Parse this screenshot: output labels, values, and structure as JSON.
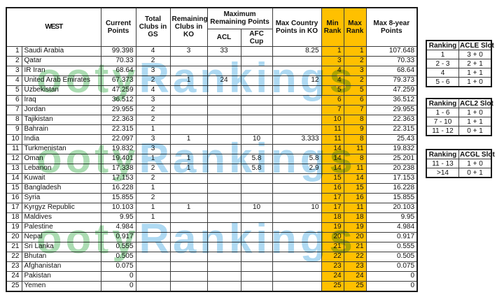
{
  "title": "WEST",
  "colors": {
    "rank_column_highlight": "#FFC000",
    "watermark_green": "#abdcb2",
    "watermark_blue": "#aed9f2"
  },
  "watermark": {
    "part_green": "ooty",
    "part_blue": "Rankings"
  },
  "main_table": {
    "headers": {
      "current_points": "Current Points",
      "total_clubs_gs": "Total Clubs in GS",
      "remaining_clubs_ko": "Remaining Clubs in KO",
      "max_remaining_group": "Maximum Remaining Points",
      "acl": "ACL",
      "afc_cup": "AFC Cup",
      "max_country_points_ko": "Max Country Points in KO",
      "min_rank": "Min Rank",
      "max_rank": "Max Rank",
      "max_8year_points": "Max 8-year Points"
    },
    "rows": [
      [
        "1",
        "Saudi Arabia",
        "99.398",
        "4",
        "3",
        "33",
        "",
        "8.25",
        "1",
        "1",
        "107.648"
      ],
      [
        "2",
        "Qatar",
        "70.33",
        "2",
        "",
        "",
        "",
        "",
        "3",
        "2",
        "70.33"
      ],
      [
        "3",
        "IR Iran",
        "68.64",
        "3",
        "",
        "",
        "",
        "",
        "4",
        "3",
        "68.64"
      ],
      [
        "4",
        "United Arab Emirates",
        "67.373",
        "2",
        "1",
        "24",
        "",
        "12",
        "4",
        "2",
        "79.373"
      ],
      [
        "5",
        "Uzbekistan",
        "47.259",
        "4",
        "",
        "",
        "",
        "",
        "5",
        "5",
        "47.259"
      ],
      [
        "6",
        "Iraq",
        "36.512",
        "3",
        "",
        "",
        "",
        "",
        "6",
        "6",
        "36.512"
      ],
      [
        "7",
        "Jordan",
        "29.955",
        "2",
        "",
        "",
        "",
        "",
        "7",
        "7",
        "29.955"
      ],
      [
        "8",
        "Tajikistan",
        "22.363",
        "2",
        "",
        "",
        "",
        "",
        "10",
        "8",
        "22.363"
      ],
      [
        "9",
        "Bahrain",
        "22.315",
        "1",
        "",
        "",
        "",
        "",
        "11",
        "9",
        "22.315"
      ],
      [
        "10",
        "India",
        "22.097",
        "3",
        "1",
        "",
        "10",
        "3.333",
        "11",
        "8",
        "25.43"
      ],
      [
        "11",
        "Turkmenistan",
        "19.832",
        "3",
        "",
        "",
        "",
        "",
        "14",
        "11",
        "19.832"
      ],
      [
        "12",
        "Oman",
        "19.401",
        "1",
        "1",
        "",
        "5.8",
        "5.8",
        "14",
        "8",
        "25.201"
      ],
      [
        "13",
        "Lebanon",
        "17.338",
        "2",
        "1",
        "",
        "5.8",
        "2.9",
        "14",
        "11",
        "20.238"
      ],
      [
        "14",
        "Kuwait",
        "17.153",
        "2",
        "",
        "",
        "",
        "",
        "15",
        "14",
        "17.153"
      ],
      [
        "15",
        "Bangladesh",
        "16.228",
        "1",
        "",
        "",
        "",
        "",
        "16",
        "15",
        "16.228"
      ],
      [
        "16",
        "Syria",
        "15.855",
        "2",
        "",
        "",
        "",
        "",
        "17",
        "16",
        "15.855"
      ],
      [
        "17",
        "Kyrgyz Republic",
        "10.103",
        "1",
        "1",
        "",
        "10",
        "10",
        "17",
        "11",
        "20.103"
      ],
      [
        "18",
        "Maldives",
        "9.95",
        "1",
        "",
        "",
        "",
        "",
        "18",
        "18",
        "9.95"
      ],
      [
        "19",
        "Palestine",
        "4.984",
        "",
        "",
        "",
        "",
        "",
        "19",
        "19",
        "4.984"
      ],
      [
        "20",
        "Nepal",
        "0.917",
        "",
        "",
        "",
        "",
        "",
        "20",
        "20",
        "0.917"
      ],
      [
        "21",
        "Sri Lanka",
        "0.555",
        "",
        "",
        "",
        "",
        "",
        "21",
        "21",
        "0.555"
      ],
      [
        "22",
        "Bhutan",
        "0.505",
        "",
        "",
        "",
        "",
        "",
        "22",
        "22",
        "0.505"
      ],
      [
        "23",
        "Afghanistan",
        "0.075",
        "",
        "",
        "",
        "",
        "",
        "23",
        "23",
        "0.075"
      ],
      [
        "24",
        "Pakistan",
        "0",
        "",
        "",
        "",
        "",
        "",
        "24",
        "24",
        "0"
      ],
      [
        "25",
        "Yemen",
        "0",
        "",
        "",
        "",
        "",
        "",
        "25",
        "25",
        "0"
      ]
    ]
  },
  "side_tables": [
    {
      "headers": [
        "Ranking",
        "ACLE Slot"
      ],
      "rows": [
        [
          "1",
          "3 + 0"
        ],
        [
          "2 - 3",
          "2 + 1"
        ],
        [
          "4",
          "1 + 1"
        ],
        [
          "5 - 6",
          "1 + 0"
        ]
      ]
    },
    {
      "headers": [
        "Ranking",
        "ACL2 Slot"
      ],
      "rows": [
        [
          "1 - 6",
          "1 + 0"
        ],
        [
          "7 - 10",
          "1 + 1"
        ],
        [
          "11 - 12",
          "0 + 1"
        ]
      ]
    },
    {
      "headers": [
        "Ranking",
        "ACGL Slot"
      ],
      "rows": [
        [
          "11 - 13",
          "1 + 0"
        ],
        [
          ">14",
          "0 + 1"
        ]
      ]
    }
  ]
}
